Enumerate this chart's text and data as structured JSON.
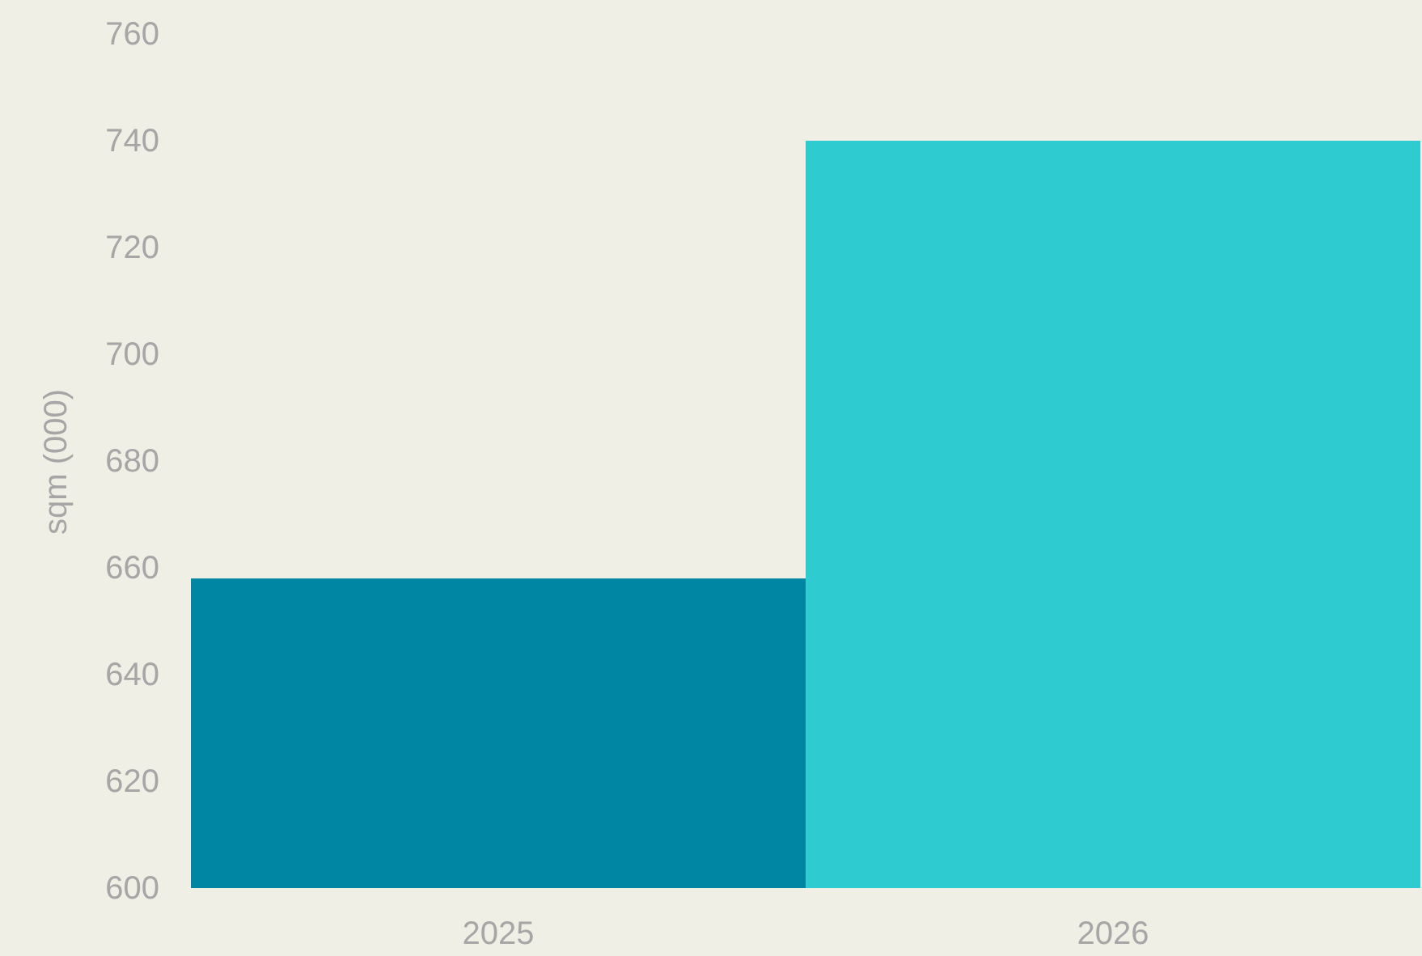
{
  "chart_data": {
    "type": "bar",
    "ylabel": "sqm (000)",
    "categories": [
      "2025",
      "2026"
    ],
    "values": [
      658,
      740
    ],
    "colors": [
      "#0086a3",
      "#2ecbd1"
    ],
    "ylim": [
      600,
      760
    ],
    "yticks": [
      600,
      620,
      640,
      660,
      680,
      700,
      720,
      740,
      760
    ],
    "grid": false,
    "legend": false
  }
}
